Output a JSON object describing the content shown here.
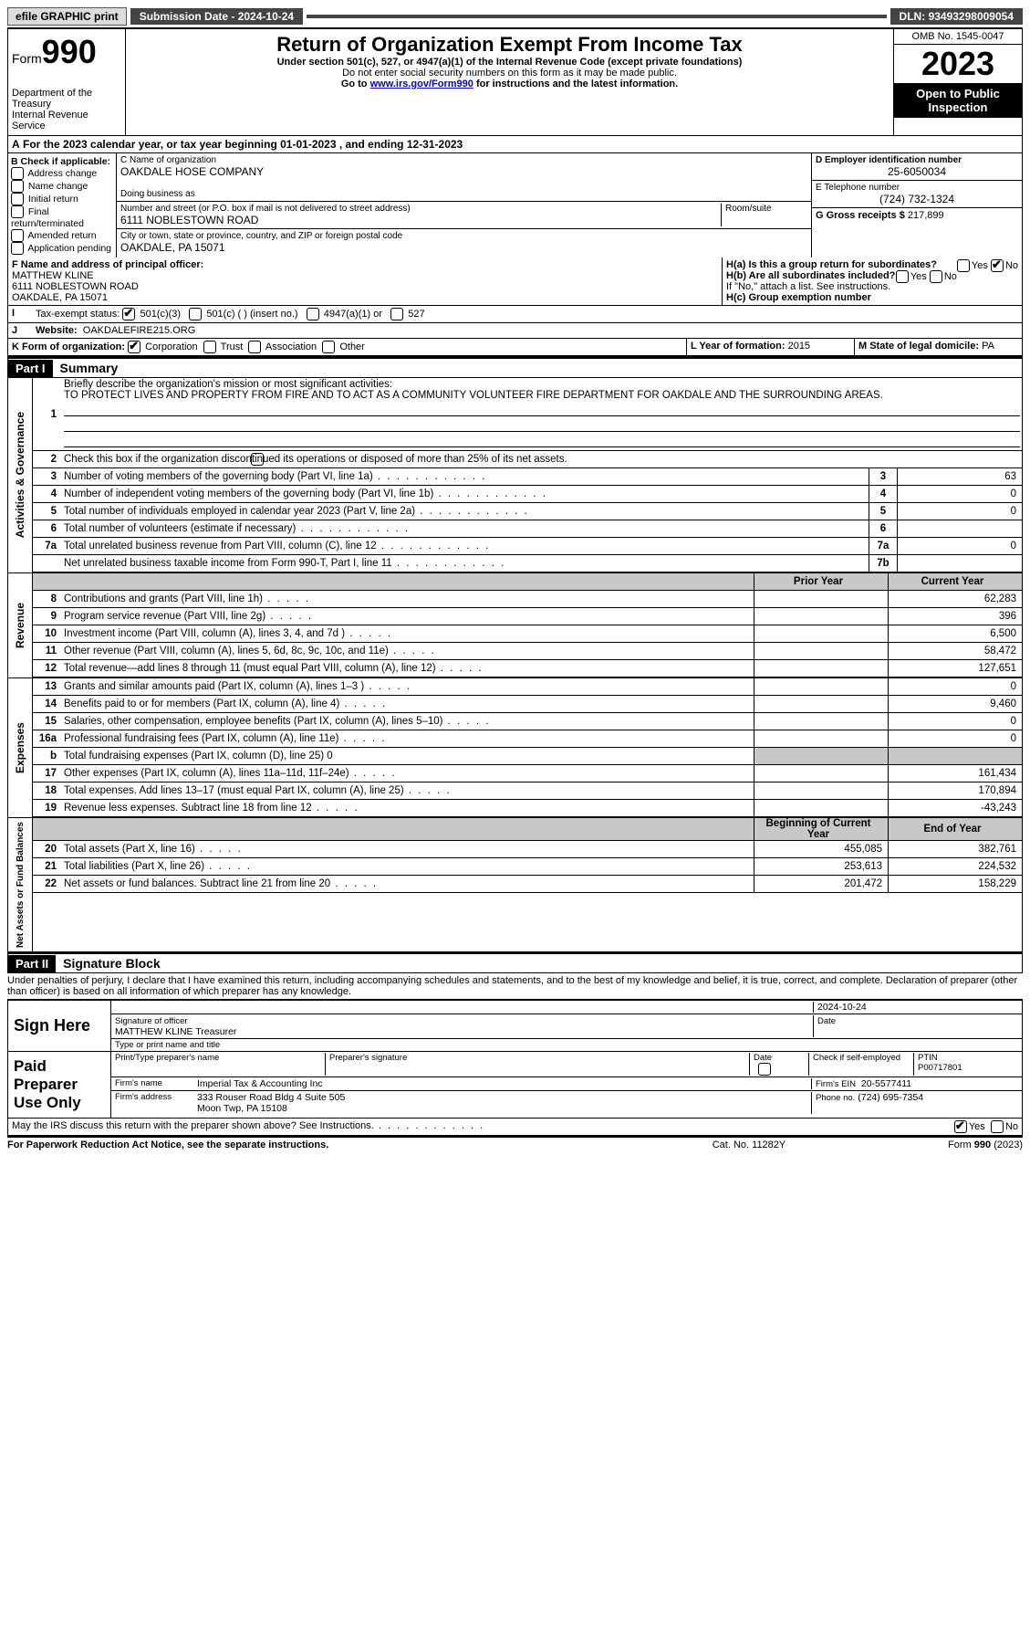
{
  "topbar": {
    "efile": "efile GRAPHIC print",
    "submission": "Submission Date - 2024-10-24",
    "dln_label": "DLN:",
    "dln": "93493298009054"
  },
  "header": {
    "form_word": "Form",
    "form_num": "990",
    "title": "Return of Organization Exempt From Income Tax",
    "sub1": "Under section 501(c), 527, or 4947(a)(1) of the Internal Revenue Code (except private foundations)",
    "sub2": "Do not enter social security numbers on this form as it may be made public.",
    "sub3_pre": "Go to ",
    "sub3_link": "www.irs.gov/Form990",
    "sub3_post": " for instructions and the latest information.",
    "dept": "Department of the Treasury\nInternal Revenue Service",
    "omb": "OMB No. 1545-0047",
    "year": "2023",
    "inspection": "Open to Public Inspection"
  },
  "line_a": "For the 2023 calendar year, or tax year beginning 01-01-2023    , and ending 12-31-2023",
  "b": {
    "title": "B Check if applicable:",
    "items": [
      "Address change",
      "Name change",
      "Initial return",
      "Final return/terminated",
      "Amended return",
      "Application pending"
    ]
  },
  "c": {
    "name_label": "C Name of organization",
    "name": "OAKDALE HOSE COMPANY",
    "dba_label": "Doing business as",
    "street_label": "Number and street (or P.O. box if mail is not delivered to street address)",
    "room_label": "Room/suite",
    "street": "6111 NOBLESTOWN ROAD",
    "city_label": "City or town, state or province, country, and ZIP or foreign postal code",
    "city": "OAKDALE, PA  15071"
  },
  "d": {
    "label": "D Employer identification number",
    "val": "25-6050034"
  },
  "e": {
    "label": "E Telephone number",
    "val": "(724) 732-1324"
  },
  "g": {
    "label": "G Gross receipts $",
    "val": "217,899"
  },
  "f": {
    "label": "F  Name and address of principal officer:",
    "name": "MATTHEW KLINE",
    "addr1": "6111 NOBLESTOWN ROAD",
    "addr2": "OAKDALE, PA  15071"
  },
  "h": {
    "a": "H(a)  Is this a group return for subordinates?",
    "b": "H(b)  Are all subordinates included?",
    "b2": "If \"No,\" attach a list. See instructions.",
    "c": "H(c)  Group exemption number",
    "yes": "Yes",
    "no": "No"
  },
  "i": {
    "label": "Tax-exempt status:",
    "opts": [
      "501(c)(3)",
      "501(c) (  ) (insert no.)",
      "4947(a)(1) or",
      "527"
    ]
  },
  "j": {
    "label": "Website:",
    "val": "OAKDALEFIRE215.ORG"
  },
  "k": {
    "label": "K Form of organization:",
    "opts": [
      "Corporation",
      "Trust",
      "Association",
      "Other"
    ]
  },
  "l": {
    "label": "L Year of formation:",
    "val": "2015"
  },
  "m": {
    "label": "M State of legal domicile:",
    "val": "PA"
  },
  "part1": {
    "num": "Part I",
    "title": "Summary"
  },
  "summary": {
    "mission_label": "Briefly describe the organization's mission or most significant activities:",
    "mission": "TO PROTECT LIVES AND PROPERTY FROM FIRE AND TO ACT AS A COMMUNITY VOLUNTEER FIRE DEPARTMENT FOR OAKDALE AND THE SURROUNDING AREAS.",
    "line2": "Check this box        if the organization discontinued its operations or disposed of more than 25% of its net assets.",
    "rows_top": [
      {
        "n": "3",
        "t": "Number of voting members of the governing body (Part VI, line 1a)",
        "box": "3",
        "v": "63"
      },
      {
        "n": "4",
        "t": "Number of independent voting members of the governing body (Part VI, line 1b)",
        "box": "4",
        "v": "0"
      },
      {
        "n": "5",
        "t": "Total number of individuals employed in calendar year 2023 (Part V, line 2a)",
        "box": "5",
        "v": "0"
      },
      {
        "n": "6",
        "t": "Total number of volunteers (estimate if necessary)",
        "box": "6",
        "v": ""
      },
      {
        "n": "7a",
        "t": "Total unrelated business revenue from Part VIII, column (C), line 12",
        "box": "7a",
        "v": "0"
      },
      {
        "n": "",
        "t": "Net unrelated business taxable income from Form 990-T, Part I, line 11",
        "box": "7b",
        "v": ""
      }
    ],
    "col_prior": "Prior Year",
    "col_curr": "Current Year",
    "revenue": [
      {
        "n": "8",
        "t": "Contributions and grants (Part VIII, line 1h)",
        "p": "",
        "c": "62,283"
      },
      {
        "n": "9",
        "t": "Program service revenue (Part VIII, line 2g)",
        "p": "",
        "c": "396"
      },
      {
        "n": "10",
        "t": "Investment income (Part VIII, column (A), lines 3, 4, and 7d )",
        "p": "",
        "c": "6,500"
      },
      {
        "n": "11",
        "t": "Other revenue (Part VIII, column (A), lines 5, 6d, 8c, 9c, 10c, and 11e)",
        "p": "",
        "c": "58,472"
      },
      {
        "n": "12",
        "t": "Total revenue—add lines 8 through 11 (must equal Part VIII, column (A), line 12)",
        "p": "",
        "c": "127,651"
      }
    ],
    "expenses": [
      {
        "n": "13",
        "t": "Grants and similar amounts paid (Part IX, column (A), lines 1–3 )",
        "p": "",
        "c": "0"
      },
      {
        "n": "14",
        "t": "Benefits paid to or for members (Part IX, column (A), line 4)",
        "p": "",
        "c": "9,460"
      },
      {
        "n": "15",
        "t": "Salaries, other compensation, employee benefits (Part IX, column (A), lines 5–10)",
        "p": "",
        "c": "0"
      },
      {
        "n": "16a",
        "t": "Professional fundraising fees (Part IX, column (A), line 11e)",
        "p": "",
        "c": "0"
      },
      {
        "n": "b",
        "t": "Total fundraising expenses (Part IX, column (D), line 25) 0",
        "p": "grey",
        "c": "grey"
      },
      {
        "n": "17",
        "t": "Other expenses (Part IX, column (A), lines 11a–11d, 11f–24e)",
        "p": "",
        "c": "161,434"
      },
      {
        "n": "18",
        "t": "Total expenses. Add lines 13–17 (must equal Part IX, column (A), line 25)",
        "p": "",
        "c": "170,894"
      },
      {
        "n": "19",
        "t": "Revenue less expenses. Subtract line 18 from line 12",
        "p": "",
        "c": "-43,243"
      }
    ],
    "col_beg": "Beginning of Current Year",
    "col_end": "End of Year",
    "net": [
      {
        "n": "20",
        "t": "Total assets (Part X, line 16)",
        "p": "455,085",
        "c": "382,761"
      },
      {
        "n": "21",
        "t": "Total liabilities (Part X, line 26)",
        "p": "253,613",
        "c": "224,532"
      },
      {
        "n": "22",
        "t": "Net assets or fund balances. Subtract line 21 from line 20",
        "p": "201,472",
        "c": "158,229"
      }
    ],
    "side_labels": [
      "Activities & Governance",
      "Revenue",
      "Expenses",
      "Net Assets or Fund Balances"
    ]
  },
  "part2": {
    "num": "Part II",
    "title": "Signature Block"
  },
  "sig": {
    "decl": "Under penalties of perjury, I declare that I have examined this return, including accompanying schedules and statements, and to the best of my knowledge and belief, it is true, correct, and complete. Declaration of preparer (other than officer) is based on all information of which preparer has any knowledge.",
    "sign_here": "Sign Here",
    "sig_officer": "Signature of officer",
    "officer": "MATTHEW KLINE  Treasurer",
    "type_name": "Type or print name and title",
    "date": "Date",
    "date_val": "2024-10-24",
    "paid": "Paid Preparer Use Only",
    "print_name": "Print/Type preparer's name",
    "prep_sig": "Preparer's signature",
    "check_self": "Check         if self-employed",
    "ptin_label": "PTIN",
    "ptin": "P00717801",
    "firm_name_label": "Firm's name",
    "firm_name": "Imperial Tax & Accounting Inc",
    "firm_ein_label": "Firm's EIN",
    "firm_ein": "20-5577411",
    "firm_addr_label": "Firm's address",
    "firm_addr1": "333 Rouser Road Bldg 4 Suite 505",
    "firm_addr2": "Moon Twp, PA  15108",
    "phone_label": "Phone no.",
    "phone": "(724) 695-7354",
    "may_irs": "May the IRS discuss this return with the preparer shown above? See Instructions."
  },
  "footer": {
    "left": "For Paperwork Reduction Act Notice, see the separate instructions.",
    "mid": "Cat. No. 11282Y",
    "right": "Form 990 (2023)"
  }
}
